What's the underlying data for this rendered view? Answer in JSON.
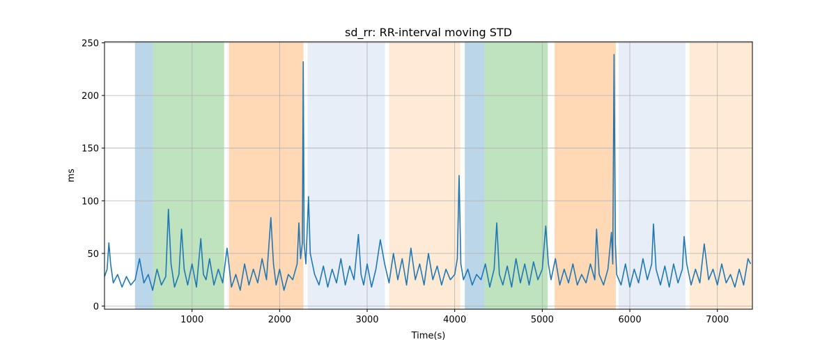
{
  "chart_data": {
    "type": "line",
    "title": "sd_rr: RR-interval moving STD",
    "xlabel": "Time(s)",
    "ylabel": "ms",
    "xlim": [
      0,
      7400
    ],
    "ylim": [
      -3,
      251
    ],
    "xticks": [
      1000,
      2000,
      3000,
      4000,
      5000,
      6000,
      7000
    ],
    "yticks": [
      0,
      50,
      100,
      150,
      200,
      250
    ],
    "grid": true,
    "span_alpha": 0.3,
    "spans": [
      {
        "start": 348,
        "end": 555,
        "color": "#1f77b4"
      },
      {
        "start": 555,
        "end": 1366,
        "color": "#2ca02c"
      },
      {
        "start": 1421,
        "end": 2272,
        "color": "#ff7f0e"
      },
      {
        "start": 2320,
        "end": 3203,
        "color": "#aec7e8"
      },
      {
        "start": 3251,
        "end": 4062,
        "color": "#ffbb78"
      },
      {
        "start": 4115,
        "end": 4338,
        "color": "#1f77b4"
      },
      {
        "start": 4338,
        "end": 5062,
        "color": "#2ca02c"
      },
      {
        "start": 5141,
        "end": 5840,
        "color": "#ff7f0e"
      },
      {
        "start": 5872,
        "end": 6635,
        "color": "#aec7e8"
      },
      {
        "start": 6683,
        "end": 7400,
        "color": "#ffbb78"
      }
    ],
    "series": [
      {
        "color": "#1f77b4",
        "x": [
          0,
          30,
          50,
          70,
          100,
          150,
          200,
          250,
          300,
          350,
          400,
          450,
          500,
          550,
          600,
          650,
          700,
          730,
          760,
          800,
          850,
          880,
          910,
          950,
          1000,
          1050,
          1100,
          1130,
          1160,
          1200,
          1250,
          1300,
          1350,
          1400,
          1450,
          1500,
          1550,
          1600,
          1650,
          1700,
          1750,
          1800,
          1850,
          1900,
          1930,
          1960,
          2000,
          2050,
          2100,
          2150,
          2200,
          2220,
          2240,
          2260,
          2270,
          2280,
          2300,
          2330,
          2350,
          2400,
          2450,
          2500,
          2550,
          2600,
          2650,
          2700,
          2750,
          2800,
          2850,
          2900,
          2930,
          2960,
          3000,
          3050,
          3100,
          3150,
          3200,
          3250,
          3300,
          3350,
          3400,
          3450,
          3500,
          3550,
          3600,
          3650,
          3700,
          3750,
          3800,
          3850,
          3900,
          3950,
          4000,
          4030,
          4050,
          4070,
          4100,
          4150,
          4200,
          4250,
          4300,
          4350,
          4400,
          4450,
          4480,
          4510,
          4550,
          4600,
          4650,
          4700,
          4750,
          4800,
          4850,
          4900,
          4950,
          5000,
          5040,
          5070,
          5100,
          5150,
          5200,
          5250,
          5300,
          5350,
          5400,
          5450,
          5500,
          5550,
          5600,
          5620,
          5650,
          5700,
          5750,
          5790,
          5805,
          5820,
          5835,
          5850,
          5900,
          5950,
          6000,
          6050,
          6100,
          6150,
          6200,
          6250,
          6270,
          6300,
          6350,
          6400,
          6450,
          6500,
          6550,
          6600,
          6620,
          6650,
          6700,
          6750,
          6800,
          6850,
          6900,
          6950,
          7000,
          7050,
          7100,
          7150,
          7200,
          7250,
          7300,
          7350,
          7380
        ],
        "values": [
          28,
          35,
          60,
          40,
          22,
          30,
          18,
          28,
          20,
          25,
          45,
          22,
          30,
          15,
          35,
          20,
          28,
          92,
          40,
          18,
          30,
          73,
          35,
          20,
          40,
          18,
          64,
          30,
          25,
          45,
          20,
          35,
          22,
          55,
          18,
          30,
          15,
          40,
          20,
          35,
          22,
          45,
          25,
          84,
          40,
          20,
          35,
          15,
          30,
          25,
          40,
          79,
          45,
          60,
          232,
          60,
          40,
          104,
          50,
          30,
          20,
          38,
          18,
          35,
          22,
          45,
          20,
          38,
          25,
          68,
          30,
          20,
          40,
          18,
          35,
          63,
          40,
          22,
          50,
          25,
          45,
          20,
          55,
          25,
          40,
          20,
          50,
          25,
          38,
          20,
          35,
          25,
          30,
          45,
          124,
          40,
          25,
          35,
          20,
          30,
          25,
          40,
          18,
          35,
          79,
          30,
          20,
          38,
          18,
          45,
          22,
          40,
          20,
          42,
          25,
          35,
          76,
          40,
          25,
          45,
          20,
          35,
          22,
          40,
          20,
          30,
          22,
          40,
          25,
          73,
          30,
          20,
          35,
          70,
          40,
          239,
          60,
          30,
          20,
          40,
          18,
          35,
          22,
          45,
          25,
          40,
          78,
          35,
          20,
          38,
          18,
          40,
          22,
          35,
          66,
          40,
          20,
          35,
          22,
          59,
          25,
          35,
          20,
          40,
          22,
          30,
          18,
          35,
          20,
          45,
          40
        ]
      }
    ]
  }
}
